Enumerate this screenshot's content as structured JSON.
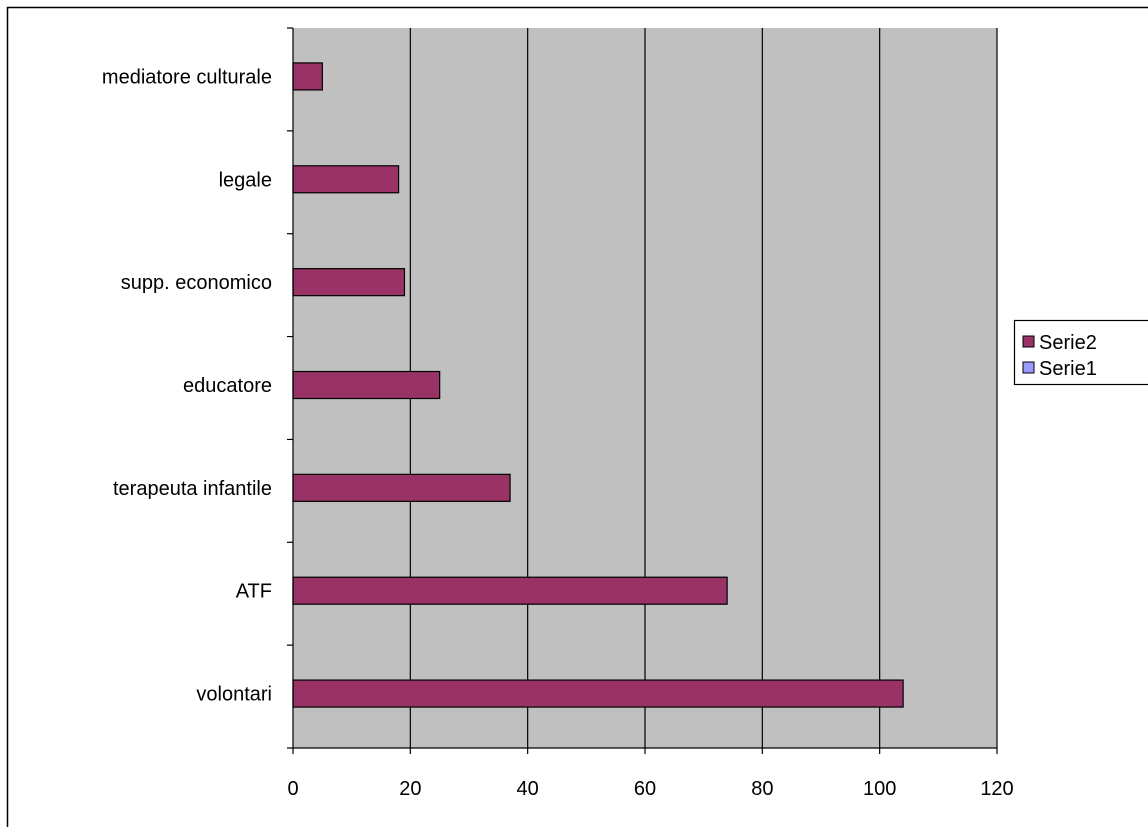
{
  "chart_data": {
    "type": "bar",
    "orientation": "horizontal",
    "title": "",
    "xlabel": "",
    "ylabel": "",
    "categories": [
      "volontari",
      "ATF",
      "terapeuta infantile",
      "educatore",
      "supp. economico",
      "legale",
      "mediatore culturale"
    ],
    "series": [
      {
        "name": "Serie2",
        "color": "#993366",
        "values": [
          104,
          74,
          37,
          25,
          19,
          18,
          5
        ]
      },
      {
        "name": "Serie1",
        "color": "#9999FF",
        "values": [
          0,
          0,
          0,
          0,
          0,
          0,
          0
        ]
      }
    ],
    "xlim": [
      0,
      120
    ],
    "xticks": [
      0,
      20,
      40,
      60,
      80,
      100,
      120
    ],
    "grid": "vertical",
    "plot_background": "#C0C0C0",
    "legend": {
      "position": "right",
      "entries": [
        "Serie2",
        "Serie1"
      ]
    }
  }
}
